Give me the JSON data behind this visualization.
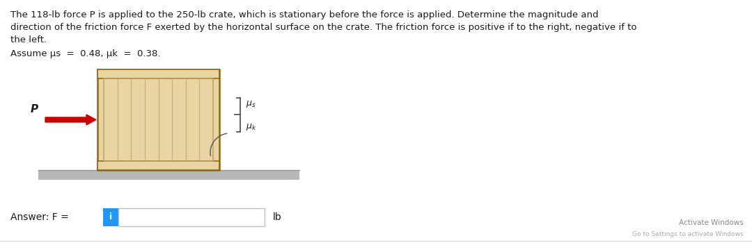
{
  "white": "#ffffff",
  "title_line1": "The 118-lb force P is applied to the 250-lb crate, which is stationary before the force is applied. Determine the magnitude and",
  "title_line2": "direction of the friction force F exerted by the horizontal surface on the crate. The friction force is positive if to the right, negative if to",
  "title_line3": "the left.",
  "assume_text": "Assume μs  =  0.48, μk  =  0.38.",
  "answer_label": "Answer: F = ",
  "lb_text": "lb",
  "info_box_color": "#2196F3",
  "info_icon": "i",
  "activate_text": "Activate Windows",
  "activate_sub": "Go to Settings to activate Windows",
  "crate_fill": "#e8d5a3",
  "crate_border": "#8B6914",
  "crate_inner_line": "#c0a060",
  "ground_fill": "#b8b8b8",
  "ground_edge": "#999999",
  "arrow_color": "#cc0000",
  "text_color": "#1a1a1a",
  "gray_text": "#888888",
  "light_gray": "#aaaaaa",
  "brace_color": "#555555",
  "title_fontsize": 9.5,
  "assume_fontsize": 9.5,
  "answer_fontsize": 10,
  "figw": 10.8,
  "figh": 3.53
}
